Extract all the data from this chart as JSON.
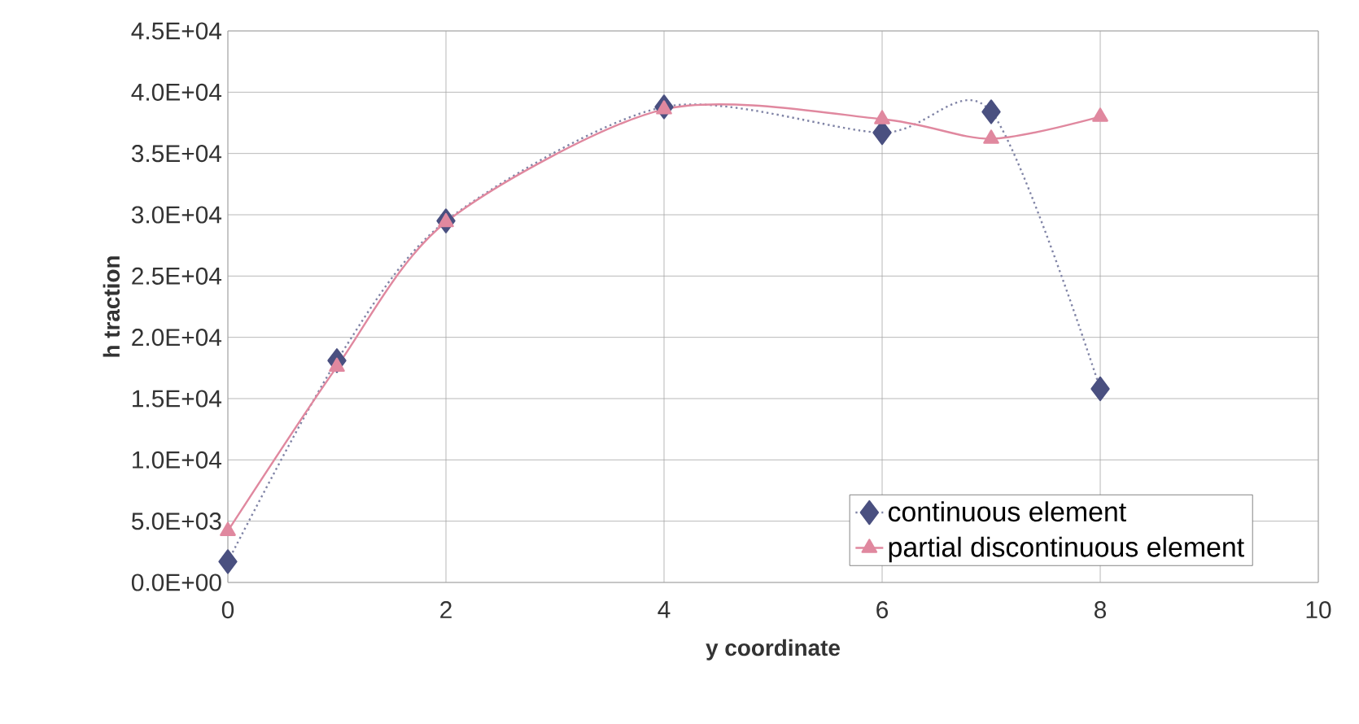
{
  "chart_data": {
    "type": "line",
    "xlabel": "y coordinate",
    "ylabel": "h traction",
    "xlim": [
      0,
      10
    ],
    "xticks": [
      0,
      2,
      4,
      6,
      8,
      10
    ],
    "ylim": [
      0,
      45000
    ],
    "yticks": [
      {
        "value": 0,
        "label": "0.0E+00"
      },
      {
        "value": 5000,
        "label": "5.0E+03"
      },
      {
        "value": 10000,
        "label": "1.0E+04"
      },
      {
        "value": 15000,
        "label": "1.5E+04"
      },
      {
        "value": 20000,
        "label": "2.0E+04"
      },
      {
        "value": 25000,
        "label": "2.5E+04"
      },
      {
        "value": 30000,
        "label": "3.0E+04"
      },
      {
        "value": 35000,
        "label": "3.5E+04"
      },
      {
        "value": 40000,
        "label": "4.0E+04"
      },
      {
        "value": 45000,
        "label": "4.5E+04"
      }
    ],
    "grid": true,
    "legend": "bottom right",
    "series": [
      {
        "name": "continuous element",
        "color": "#4a5080",
        "marker": "diamond",
        "line_style": "dotted",
        "x": [
          0,
          1,
          2,
          4,
          6,
          7,
          8
        ],
        "values": [
          1700,
          18100,
          29500,
          38800,
          36700,
          38400,
          15800
        ]
      },
      {
        "name": "partial discontinuous element",
        "color": "#e0889f",
        "marker": "triangle",
        "line_style": "solid",
        "x": [
          0,
          1,
          2,
          4,
          6,
          7,
          8
        ],
        "values": [
          4200,
          17600,
          29400,
          38600,
          37800,
          36200,
          38000
        ]
      }
    ]
  }
}
